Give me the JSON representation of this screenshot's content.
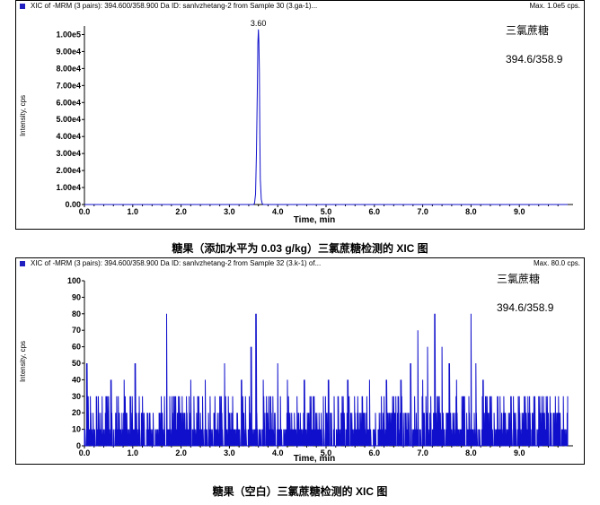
{
  "charts": [
    {
      "header": "XIC of -MRM (3 pairs): 394.600/358.900 Da ID: sanlvzhetang-2 from Sample 30 (3.ga-1)...",
      "max_label": "Max. 1.0e5 cps.",
      "compound": "三氯蔗糖",
      "transition": "394.6/358.9",
      "caption": "糖果（添加水平为 0.03 g/kg）三氯蔗糖检测的 XIC 图"
    },
    {
      "header": "XIC of -MRM (3 pairs): 394.600/358.900 Da ID: sanlvzhetang-2 from Sample 32 (3.k-1) of...",
      "max_label": "Max. 80.0 cps.",
      "compound": "三氯蔗糖",
      "transition": "394.6/358.9",
      "caption": "糖果（空白）三氯蔗糖检测的 XIC 图"
    }
  ],
  "chart_data": [
    {
      "type": "line",
      "xlabel": "Time, min",
      "ylabel": "Intensity, cps",
      "xlim": [
        0,
        10.0
      ],
      "ylim": [
        0,
        105000
      ],
      "x_ticks": [
        "0.0",
        "1.0",
        "2.0",
        "3.0",
        "4.0",
        "5.0",
        "6.0",
        "7.0",
        "8.0",
        "9.0"
      ],
      "y_ticks": [
        "0.00",
        "1.00e4",
        "2.00e4",
        "3.00e4",
        "4.00e4",
        "5.00e4",
        "6.00e4",
        "7.00e4",
        "8.00e4",
        "9.00e4",
        "1.00e5"
      ],
      "peak_label": "3.60",
      "series": [
        {
          "color": "#1010cc",
          "x": [
            0.0,
            3.5,
            3.52,
            3.54,
            3.56,
            3.58,
            3.59,
            3.6,
            3.61,
            3.62,
            3.63,
            3.64,
            3.66,
            3.68,
            3.7,
            10.0
          ],
          "y": [
            0,
            0,
            800,
            6000,
            30000,
            72000,
            95000,
            103000,
            96000,
            78000,
            40000,
            15000,
            3000,
            500,
            0,
            0
          ]
        }
      ]
    },
    {
      "type": "line",
      "xlabel": "Time, min",
      "ylabel": "Intensity, cps",
      "xlim": [
        0,
        10.0
      ],
      "ylim": [
        0,
        100
      ],
      "x_ticks": [
        "0.0",
        "1.0",
        "2.0",
        "3.0",
        "4.0",
        "5.0",
        "6.0",
        "7.0",
        "8.0",
        "9.0"
      ],
      "y_ticks": [
        "0",
        "10",
        "20",
        "30",
        "40",
        "50",
        "60",
        "70",
        "80",
        "90",
        "100"
      ],
      "noise_spikes": [
        [
          0.05,
          50
        ],
        [
          0.12,
          30
        ],
        [
          0.3,
          20
        ],
        [
          0.45,
          30
        ],
        [
          0.55,
          40
        ],
        [
          0.7,
          30
        ],
        [
          0.82,
          40
        ],
        [
          0.95,
          30
        ],
        [
          1.05,
          50
        ],
        [
          1.2,
          30
        ],
        [
          1.35,
          20
        ],
        [
          1.55,
          20
        ],
        [
          1.7,
          80
        ],
        [
          1.85,
          30
        ],
        [
          2.0,
          20
        ],
        [
          2.2,
          40
        ],
        [
          2.35,
          30
        ],
        [
          2.5,
          40
        ],
        [
          2.7,
          30
        ],
        [
          2.9,
          50
        ],
        [
          3.05,
          20
        ],
        [
          3.25,
          40
        ],
        [
          3.45,
          60
        ],
        [
          3.55,
          80
        ],
        [
          3.7,
          40
        ],
        [
          3.85,
          30
        ],
        [
          4.0,
          50
        ],
        [
          4.2,
          40
        ],
        [
          4.4,
          30
        ],
        [
          4.55,
          40
        ],
        [
          4.75,
          30
        ],
        [
          4.9,
          20
        ],
        [
          5.05,
          40
        ],
        [
          5.25,
          30
        ],
        [
          5.45,
          40
        ],
        [
          5.6,
          20
        ],
        [
          5.75,
          30
        ],
        [
          5.9,
          40
        ],
        [
          6.1,
          20
        ],
        [
          6.25,
          40
        ],
        [
          6.4,
          30
        ],
        [
          6.55,
          40
        ],
        [
          6.75,
          50
        ],
        [
          6.9,
          70
        ],
        [
          7.0,
          40
        ],
        [
          7.1,
          60
        ],
        [
          7.25,
          80
        ],
        [
          7.4,
          60
        ],
        [
          7.55,
          50
        ],
        [
          7.7,
          40
        ],
        [
          7.85,
          30
        ],
        [
          8.0,
          80
        ],
        [
          8.1,
          50
        ],
        [
          8.25,
          40
        ],
        [
          8.4,
          30
        ],
        [
          8.6,
          30
        ],
        [
          8.8,
          20
        ],
        [
          9.0,
          30
        ],
        [
          9.2,
          20
        ],
        [
          9.4,
          30
        ],
        [
          9.6,
          20
        ],
        [
          9.8,
          20
        ]
      ],
      "series": [
        {
          "color": "#1010cc"
        }
      ]
    }
  ]
}
